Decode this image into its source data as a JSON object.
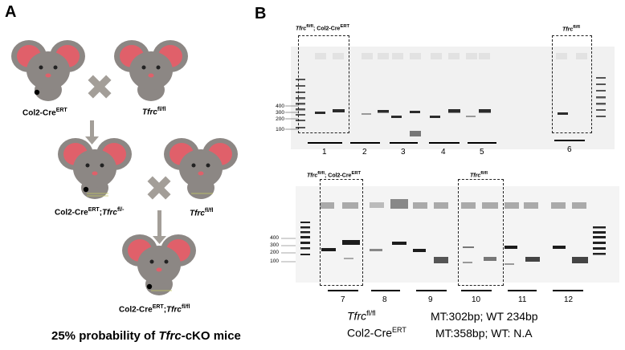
{
  "panelA": {
    "letter": "A",
    "parent1": {
      "base": "Col2-Cre",
      "sup": "ERT"
    },
    "parent2": {
      "base": "Tfrc",
      "sup": "fl/fl"
    },
    "offspring1": {
      "base": "Col2-Cre",
      "sup": "ERT",
      "sep": ";",
      "gene": "Tfrc",
      "sup2": "fl/-"
    },
    "parent3": {
      "base": "Tfrc",
      "sup": "fl/fl"
    },
    "offspring2": {
      "base": "Col2-Cre",
      "sup": "ERT",
      "sep": ";",
      "gene": "Tfrc",
      "sup2": "fl/fl"
    },
    "caption": {
      "prefix": "25% probability of ",
      "gene": "Tfrc",
      "suffix": "-cKO mice"
    },
    "colors": {
      "mouse": "#8c8784",
      "ear": "#e0606a",
      "cross": "#a39e98"
    }
  },
  "panelB": {
    "letter": "B",
    "top_gel": {
      "label_left": {
        "gene": "Tfrc",
        "sup": "fl/fl",
        "rest": "; Col2-Cre",
        "sup2": "ERT"
      },
      "label_right": {
        "gene": "Tfrc",
        "sup": "fl/fl"
      },
      "markers": [
        "400",
        "300",
        "200",
        "100"
      ],
      "lanes": [
        "1",
        "2",
        "3",
        "4",
        "5",
        "6"
      ]
    },
    "bottom_gel": {
      "label_left": {
        "gene": "Tfrc",
        "sup": "fl/fl",
        "rest": "; Col2-Cre",
        "sup2": "ERT"
      },
      "label_right": {
        "gene": "Tfrc",
        "sup": "fl/fl"
      },
      "markers": [
        "400",
        "300",
        "200",
        "100"
      ],
      "lanes": [
        "7",
        "8",
        "9",
        "10",
        "11",
        "12"
      ]
    },
    "legend": {
      "row1_name": "Tfrc",
      "row1_sup": "fl/fl",
      "row1_text": "MT:302bp; WT 234bp",
      "row2_name": "Col2-Cre",
      "row2_sup": "ERT",
      "row2_text": "MT:358bp; WT: N.A"
    }
  }
}
